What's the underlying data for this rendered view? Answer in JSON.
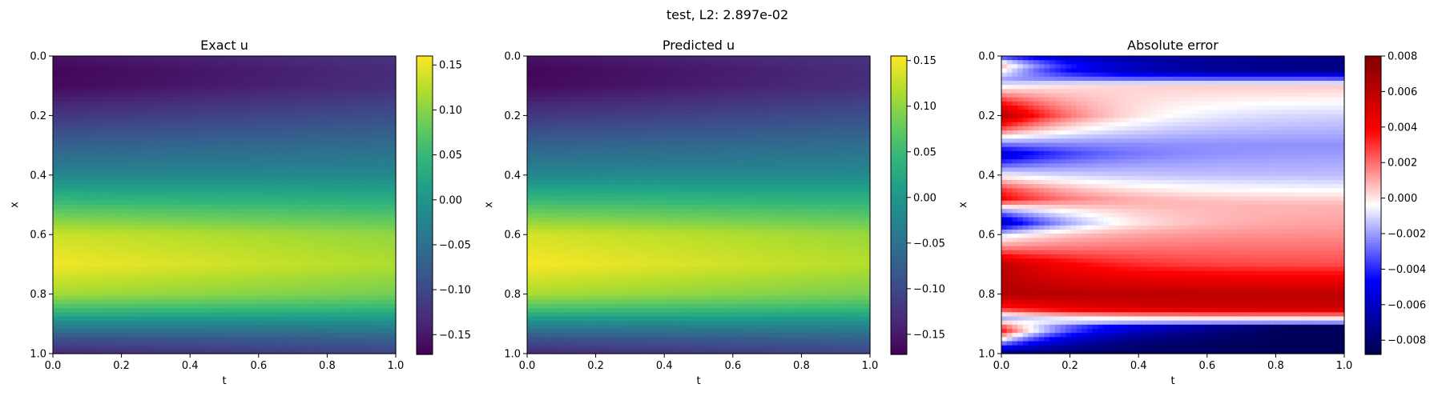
{
  "suptitle": "test, L2: 2.897e-02",
  "chart_data": [
    {
      "type": "heatmap",
      "title": "Exact u",
      "xlabel": "t",
      "ylabel": "x",
      "xlim": [
        0.0,
        1.0
      ],
      "ylim": [
        1.0,
        0.0
      ],
      "xticks": [
        "0.0",
        "0.2",
        "0.4",
        "0.6",
        "0.8",
        "1.0"
      ],
      "yticks": [
        "0.0",
        "0.2",
        "0.4",
        "0.6",
        "0.8",
        "1.0"
      ],
      "colormap": "viridis",
      "colorbar": {
        "vmin": -0.172,
        "vmax": 0.16,
        "ticks": [
          0.15,
          0.1,
          0.05,
          0.0,
          -0.05,
          -0.1,
          -0.15
        ],
        "tick_labels": [
          "0.15",
          "0.10",
          "0.05",
          "0.00",
          "−0.05",
          "−0.10",
          "−0.15"
        ]
      },
      "field": {
        "description_of_values": "u(x,t) approx, varies mainly with x, slight decay with t",
        "x_profile": [
          [
            0.0,
            -0.155
          ],
          [
            0.05,
            -0.168
          ],
          [
            0.1,
            -0.165
          ],
          [
            0.2,
            -0.12
          ],
          [
            0.3,
            -0.07
          ],
          [
            0.4,
            -0.02
          ],
          [
            0.5,
            0.06
          ],
          [
            0.6,
            0.135
          ],
          [
            0.7,
            0.155
          ],
          [
            0.8,
            0.115
          ],
          [
            0.85,
            0.06
          ],
          [
            0.9,
            -0.02
          ],
          [
            0.95,
            -0.09
          ],
          [
            1.0,
            -0.135
          ]
        ],
        "t_decay": 0.78
      }
    },
    {
      "type": "heatmap",
      "title": "Predicted u",
      "xlabel": "t",
      "ylabel": "x",
      "xlim": [
        0.0,
        1.0
      ],
      "ylim": [
        1.0,
        0.0
      ],
      "xticks": [
        "0.0",
        "0.2",
        "0.4",
        "0.6",
        "0.8",
        "1.0"
      ],
      "yticks": [
        "0.0",
        "0.2",
        "0.4",
        "0.6",
        "0.8",
        "1.0"
      ],
      "colormap": "viridis",
      "colorbar": {
        "vmin": -0.172,
        "vmax": 0.155,
        "ticks": [
          0.15,
          0.1,
          0.05,
          0.0,
          -0.05,
          -0.1,
          -0.15
        ],
        "tick_labels": [
          "0.15",
          "0.10",
          "0.05",
          "0.00",
          "−0.05",
          "−0.10",
          "−0.15"
        ]
      },
      "field": {
        "x_profile": [
          [
            0.0,
            -0.155
          ],
          [
            0.05,
            -0.168
          ],
          [
            0.1,
            -0.165
          ],
          [
            0.2,
            -0.12
          ],
          [
            0.3,
            -0.07
          ],
          [
            0.4,
            -0.02
          ],
          [
            0.5,
            0.06
          ],
          [
            0.6,
            0.135
          ],
          [
            0.7,
            0.153
          ],
          [
            0.8,
            0.113
          ],
          [
            0.85,
            0.06
          ],
          [
            0.9,
            -0.02
          ],
          [
            0.95,
            -0.09
          ],
          [
            1.0,
            -0.135
          ]
        ],
        "t_decay": 0.78
      }
    },
    {
      "type": "heatmap",
      "title": "Absolute error",
      "xlabel": "t",
      "ylabel": "x",
      "xlim": [
        0.0,
        1.0
      ],
      "ylim": [
        1.0,
        0.0
      ],
      "xticks": [
        "0.0",
        "0.2",
        "0.4",
        "0.6",
        "0.8",
        "1.0"
      ],
      "yticks": [
        "0.0",
        "0.2",
        "0.4",
        "0.6",
        "0.8",
        "1.0"
      ],
      "colormap": "seismic",
      "colorbar": {
        "vmin": -0.0088,
        "vmax": 0.008,
        "ticks": [
          0.008,
          0.006,
          0.004,
          0.002,
          0.0,
          -0.002,
          -0.004,
          -0.006,
          -0.008
        ],
        "tick_labels": [
          "0.008",
          "0.006",
          "0.004",
          "0.002",
          "0.000",
          "−0.002",
          "−0.004",
          "−0.006",
          "−0.008"
        ]
      },
      "field": {
        "x_profile_late": [
          [
            0.0,
            -0.0075
          ],
          [
            0.05,
            -0.0075
          ],
          [
            0.1,
            0.0005
          ],
          [
            0.2,
            -0.0012
          ],
          [
            0.3,
            -0.0022
          ],
          [
            0.4,
            -0.0015
          ],
          [
            0.45,
            -0.0005
          ],
          [
            0.5,
            0.0008
          ],
          [
            0.6,
            0.0015
          ],
          [
            0.7,
            0.0025
          ],
          [
            0.8,
            0.006
          ],
          [
            0.85,
            0.0055
          ],
          [
            0.9,
            -0.003
          ],
          [
            0.95,
            -0.0075
          ],
          [
            1.0,
            -0.0085
          ]
        ],
        "x_profile_early": [
          [
            0.0,
            -0.004
          ],
          [
            0.03,
            0.001
          ],
          [
            0.08,
            -0.002
          ],
          [
            0.15,
            0.003
          ],
          [
            0.2,
            0.0065
          ],
          [
            0.25,
            0.002
          ],
          [
            0.3,
            -0.003
          ],
          [
            0.33,
            -0.006
          ],
          [
            0.38,
            -0.002
          ],
          [
            0.45,
            0.003
          ],
          [
            0.48,
            0.004
          ],
          [
            0.52,
            -0.002
          ],
          [
            0.56,
            -0.0065
          ],
          [
            0.6,
            -0.001
          ],
          [
            0.65,
            0.002
          ],
          [
            0.7,
            0.006
          ],
          [
            0.8,
            0.0065
          ],
          [
            0.85,
            0.003
          ],
          [
            0.88,
            -0.002
          ],
          [
            0.92,
            0.004
          ],
          [
            0.95,
            0.0
          ],
          [
            1.0,
            -0.008
          ]
        ],
        "early_width": 0.22
      }
    }
  ]
}
